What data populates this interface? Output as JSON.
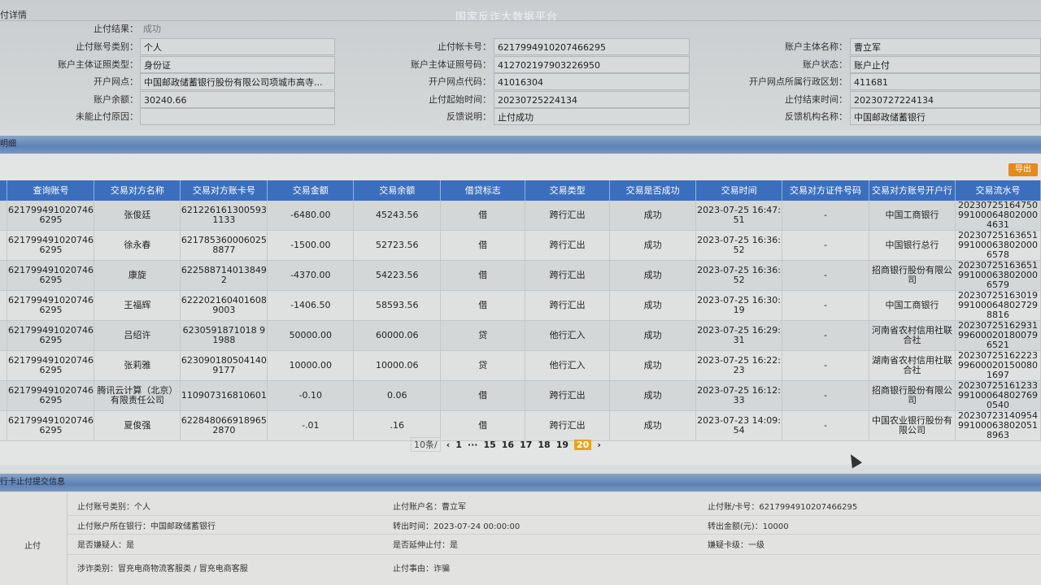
{
  "detail": {
    "title": "付详情",
    "watermark": "国家反诈大数据平台",
    "result_label": "止付结果：",
    "result_value": "成功",
    "left": [
      {
        "label": "止付账号类别：",
        "value": "个人"
      },
      {
        "label": "账户主体证照类型：",
        "value": "身份证"
      },
      {
        "label": "开户网点：",
        "value": "中国邮政储蓄银行股份有限公司项城市高寺..."
      },
      {
        "label": "账户余额：",
        "value": "30240.66"
      },
      {
        "label": "未能止付原因：",
        "value": ""
      }
    ],
    "middle": [
      {
        "label": "止付帐卡号：",
        "value": "6217994910207466295"
      },
      {
        "label": "账户主体证照号码：",
        "value": "412702197903226950"
      },
      {
        "label": "开户网点代码：",
        "value": "41016304"
      },
      {
        "label": "止付起始时间：",
        "value": "20230725224134"
      },
      {
        "label": "反馈说明：",
        "value": "止付成功"
      }
    ],
    "right": [
      {
        "label": "账户主体名称：",
        "value": "曹立军"
      },
      {
        "label": "账户状态：",
        "value": "账户止付"
      },
      {
        "label": "开户网点所属行政区划：",
        "value": "411681"
      },
      {
        "label": "止付结束时间：",
        "value": "20230727224134"
      },
      {
        "label": "反馈机构名称：",
        "value": "中国邮政储蓄银行"
      }
    ]
  },
  "transactions": {
    "section_title": "明细",
    "export_label": "导出",
    "columns": [
      "",
      "查询账号",
      "交易对方名称",
      "交易对方账卡号",
      "交易金额",
      "交易余额",
      "借贷标志",
      "交易类型",
      "交易是否成功",
      "交易时间",
      "交易对方证件号码",
      "交易对方账号开户行",
      "交易流水号"
    ],
    "rows": [
      [
        "",
        "6217994910207466295",
        "张俊廷",
        "6212261613005931133",
        "-6480.00",
        "45243.56",
        "借",
        "跨行汇出",
        "成功",
        "2023-07-25 16:47:51",
        "-",
        "中国工商银行",
        "20230725164750991000648020004631"
      ],
      [
        "",
        "6217994910207466295",
        "徐永春",
        "6217853600060258877",
        "-1500.00",
        "52723.56",
        "借",
        "跨行汇出",
        "成功",
        "2023-07-25 16:36:52",
        "-",
        "中国银行总行",
        "20230725163651991000638020006578"
      ],
      [
        "",
        "6217994910207466295",
        "康旋",
        "622588714013849 2",
        "-4370.00",
        "54223.56",
        "借",
        "跨行汇出",
        "成功",
        "2023-07-25 16:36:52",
        "-",
        "招商银行股份有限公司",
        "20230725163651991000638020006579"
      ],
      [
        "",
        "6217994910207466295",
        "王福辉",
        "6222021604016089003",
        "-1406.50",
        "58593.56",
        "借",
        "跨行汇出",
        "成功",
        "2023-07-25 16:30:19",
        "-",
        "中国工商银行",
        "20230725163019991000648027298816"
      ],
      [
        "",
        "6217994910207466295",
        "吕绍许",
        "6230591871018 91988",
        "50000.00",
        "60000.06",
        "贷",
        "他行汇入",
        "成功",
        "2023-07-25 16:29:31",
        "-",
        "河南省农村信用社联合社",
        "20230725162931996000201800796521"
      ],
      [
        "",
        "6217994910207466295",
        "张莉雅",
        "6230901805041409177",
        "10000.00",
        "10000.06",
        "贷",
        "他行汇入",
        "成功",
        "2023-07-25 16:22:23",
        "-",
        "湖南省农村信用社联合社",
        "20230725162223996000201500801697"
      ],
      [
        "",
        "6217994910207466295",
        "腾讯云计算（北京）有限责任公司",
        "110907316810601",
        "-0.10",
        "0.06",
        "借",
        "跨行汇出",
        "成功",
        "2023-07-25 16:12:33",
        "-",
        "招商银行股份有限公司",
        "20230725161233991000648027690540"
      ],
      [
        "",
        "6217994910207466295",
        "夏俊强",
        "6228480669189652870",
        "-.01",
        ".16",
        "借",
        "跨行汇出",
        "成功",
        "2023-07-23 14:09:54",
        "-",
        "中国农业银行股份有限公司",
        "20230723140954991000638020518963"
      ]
    ],
    "pagination": {
      "page_size": "10条/",
      "pages": [
        "1",
        "···",
        "15",
        "16",
        "17",
        "18",
        "19",
        "20"
      ],
      "current": "20"
    }
  },
  "submission": {
    "section_title": "行卡止付提交信息",
    "row_label": "止付",
    "fields": [
      "止付账号类别：个人",
      "止付账户名：曹立军",
      "止付账/卡号：6217994910207466295",
      "止付账户所在银行：中国邮政储蓄银行",
      "转出时间：2023-07-24 00:00:00",
      "转出金额(元)：10000",
      "是否嫌疑人：是",
      "是否延伸止付：是",
      "嫌疑卡级：一级",
      "涉诈类别：冒充电商物流客服类 / 冒充电商客服",
      "止付事由：诈骗"
    ]
  },
  "colors": {
    "header_blue": "#3b6fbe",
    "current_page": "#e9a31a",
    "export": "#e48a1f"
  }
}
